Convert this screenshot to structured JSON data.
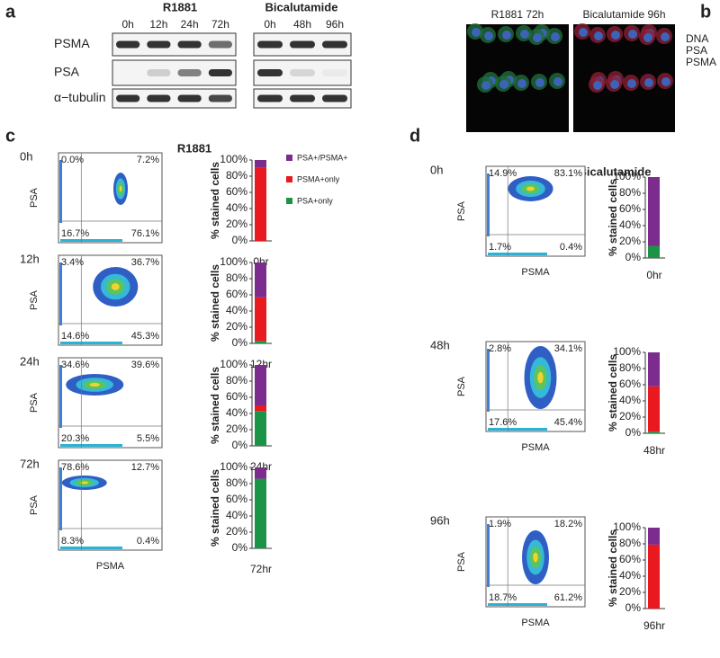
{
  "panel_a": {
    "label": "a",
    "groups": [
      {
        "name": "R1881",
        "times": [
          "0h",
          "12h",
          "24h",
          "72h"
        ]
      },
      {
        "name": "Bicalutamide",
        "times": [
          "0h",
          "48h",
          "96h"
        ]
      }
    ],
    "rows": [
      {
        "name": "PSMA",
        "color": "#e8202a"
      },
      {
        "name": "PSA",
        "color": "#1a9a3a"
      },
      {
        "name": "α−tubulin",
        "color": "#000000"
      }
    ]
  },
  "panel_b": {
    "label": "b",
    "images": [
      "R1881 72h",
      "Bicalutamide 96h"
    ],
    "legend": [
      {
        "name": "DNA",
        "color": "#3b6bc4"
      },
      {
        "name": "PSA",
        "color": "#1a9a3a"
      },
      {
        "name": "PSMA",
        "color": "#e8202a"
      }
    ]
  },
  "panel_c": {
    "label": "c",
    "title": "R1881",
    "x_label": "PSMA",
    "y_label": "PSA",
    "bar_y_label": "% stained cells",
    "legend": [
      {
        "name": "PSA+/PSMA+",
        "color": "#7b2c8c"
      },
      {
        "name": "PSMA+only",
        "color": "#e8191f"
      },
      {
        "name": "PSA+only",
        "color": "#1c9448"
      }
    ],
    "ylim": [
      0,
      100
    ],
    "yticks": [
      {
        "value": 0,
        "label": "0%"
      },
      {
        "value": 20,
        "label": "20%"
      },
      {
        "value": 40,
        "label": "40%"
      },
      {
        "value": 60,
        "label": "60%"
      },
      {
        "value": 80,
        "label": "80%"
      },
      {
        "value": 100,
        "label": "100%"
      }
    ],
    "rows": [
      {
        "time": "0h",
        "quadrants": [
          "0.0%",
          "7.2%",
          "16.7%",
          "76.1%"
        ],
        "category": "0hr",
        "values": [
          9,
          91,
          0
        ]
      },
      {
        "time": "12h",
        "quadrants": [
          "3.4%",
          "36.7%",
          "14.6%",
          "45.3%"
        ],
        "category": "12hr",
        "values": [
          43,
          54,
          3
        ]
      },
      {
        "time": "24h",
        "quadrants": [
          "34.6%",
          "39.6%",
          "20.3%",
          "5.5%"
        ],
        "category": "24hr",
        "values": [
          50,
          7,
          43
        ]
      },
      {
        "time": "72h",
        "quadrants": [
          "78.6%",
          "12.7%",
          "8.3%",
          "0.4%"
        ],
        "category": "72hr",
        "values": [
          14,
          0,
          86
        ]
      }
    ]
  },
  "panel_d": {
    "label": "d",
    "title": "Bicalutamide",
    "x_label": "PSMA",
    "y_label": "PSA",
    "bar_y_label": "% stained cells",
    "ylim": [
      0,
      100
    ],
    "yticks": [
      {
        "value": 0,
        "label": "0%"
      },
      {
        "value": 20,
        "label": "20%"
      },
      {
        "value": 40,
        "label": "40%"
      },
      {
        "value": 60,
        "label": "60%"
      },
      {
        "value": 80,
        "label": "80%"
      },
      {
        "value": 100,
        "label": "100%"
      }
    ],
    "rows": [
      {
        "time": "0h",
        "quadrants": [
          "14.9%",
          "83.1%",
          "1.7%",
          "0.4%"
        ],
        "category": "0hr",
        "values": [
          85,
          0,
          15
        ]
      },
      {
        "time": "48h",
        "quadrants": [
          "2.8%",
          "34.1%",
          "17.6%",
          "45.4%"
        ],
        "category": "48hr",
        "values": [
          42,
          56,
          2
        ]
      },
      {
        "time": "96h",
        "quadrants": [
          "1.9%",
          "18.2%",
          "18.7%",
          "61.2%"
        ],
        "category": "96hr",
        "values": [
          21,
          79,
          0
        ]
      }
    ]
  }
}
